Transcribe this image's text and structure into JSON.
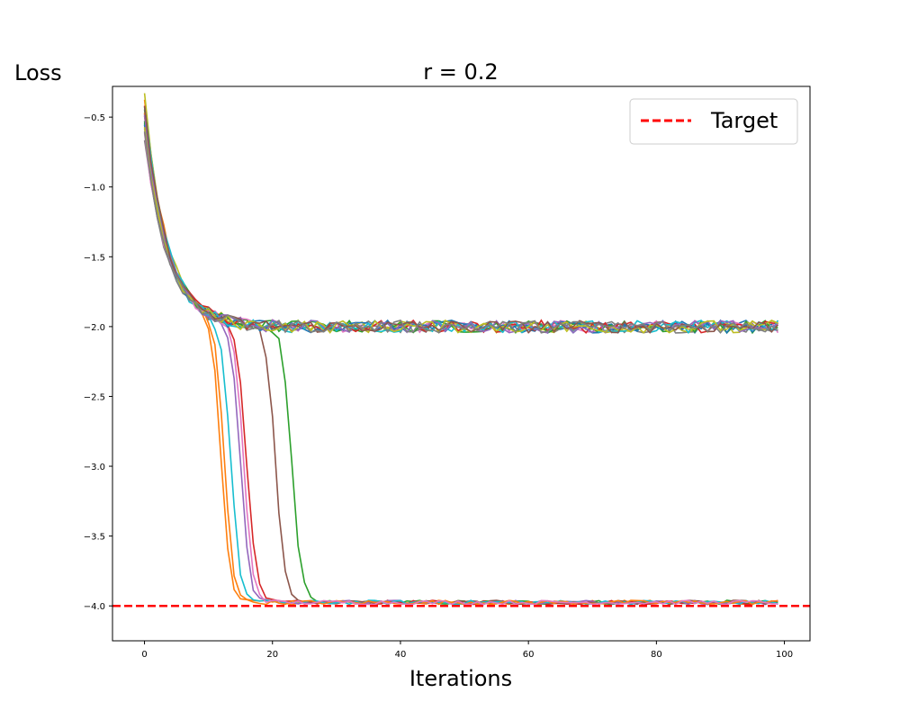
{
  "chart_data": {
    "type": "line",
    "title": "r = 0.2",
    "xlabel": "Iterations",
    "ylabel": "Loss",
    "xlim": [
      -5,
      104
    ],
    "ylim": [
      -4.25,
      -0.28
    ],
    "xticks": [
      0,
      20,
      40,
      60,
      80,
      100
    ],
    "yticks": [
      -4.0,
      -3.5,
      -3.0,
      -2.5,
      -2.0,
      -1.5,
      -1.0,
      -0.5
    ],
    "ytick_labels": [
      "−4.0",
      "−3.5",
      "−3.0",
      "−2.5",
      "−2.0",
      "−1.5",
      "−1.0",
      "−0.5"
    ],
    "xtick_labels": [
      "0",
      "20",
      "40",
      "60",
      "80",
      "100"
    ],
    "target": {
      "name": "Target",
      "value": -4.0,
      "color": "#ff0000",
      "style": "dashed"
    },
    "legend": {
      "position": "top-right",
      "entries": [
        "Target"
      ]
    },
    "grid": false,
    "n_iterations": 100,
    "colors": [
      "#1f77b4",
      "#ff7f0e",
      "#2ca02c",
      "#d62728",
      "#9467bd",
      "#8c564b",
      "#e377c2",
      "#7f7f7f",
      "#bcbd22",
      "#17becf"
    ],
    "series": [
      {
        "start": -0.55,
        "plateau": -2.0,
        "drop_at": null,
        "color": "#1f77b4"
      },
      {
        "start": -0.38,
        "plateau": -2.0,
        "drop_at": 12.5,
        "color": "#ff7f0e"
      },
      {
        "start": -0.45,
        "plateau": -2.0,
        "drop_at": 23,
        "color": "#2ca02c"
      },
      {
        "start": -0.52,
        "plateau": -2.0,
        "drop_at": 16,
        "color": "#d62728"
      },
      {
        "start": -0.6,
        "plateau": -2.0,
        "drop_at": 15,
        "color": "#9467bd"
      },
      {
        "start": -0.48,
        "plateau": -2.0,
        "drop_at": 20.5,
        "color": "#8c564b"
      },
      {
        "start": -0.5,
        "plateau": -2.0,
        "drop_at": null,
        "color": "#e377c2"
      },
      {
        "start": -0.64,
        "plateau": -2.0,
        "drop_at": null,
        "color": "#7f7f7f"
      },
      {
        "start": -0.35,
        "plateau": -2.0,
        "drop_at": null,
        "color": "#bcbd22"
      },
      {
        "start": -0.58,
        "plateau": -2.0,
        "drop_at": 13.5,
        "color": "#17becf"
      },
      {
        "start": -0.46,
        "plateau": -2.0,
        "drop_at": 12,
        "color": "#ff7f0e"
      },
      {
        "start": -0.53,
        "plateau": -2.0,
        "drop_at": null,
        "color": "#2ca02c"
      },
      {
        "start": -0.62,
        "plateau": -2.0,
        "drop_at": 15.5,
        "color": "#e377c2"
      },
      {
        "start": -0.44,
        "plateau": -2.0,
        "drop_at": null,
        "color": "#d62728"
      },
      {
        "start": -0.57,
        "plateau": -2.0,
        "drop_at": null,
        "color": "#1f77b4"
      },
      {
        "start": -0.41,
        "plateau": -2.0,
        "drop_at": null,
        "color": "#17becf"
      },
      {
        "start": -0.49,
        "plateau": -2.0,
        "drop_at": null,
        "color": "#9467bd"
      },
      {
        "start": -0.56,
        "plateau": -2.0,
        "drop_at": null,
        "color": "#bcbd22"
      },
      {
        "start": -0.43,
        "plateau": -2.0,
        "drop_at": null,
        "color": "#8c564b"
      },
      {
        "start": -0.6,
        "plateau": -2.0,
        "drop_at": null,
        "color": "#7f7f7f"
      }
    ],
    "low_plateau": -3.975
  }
}
